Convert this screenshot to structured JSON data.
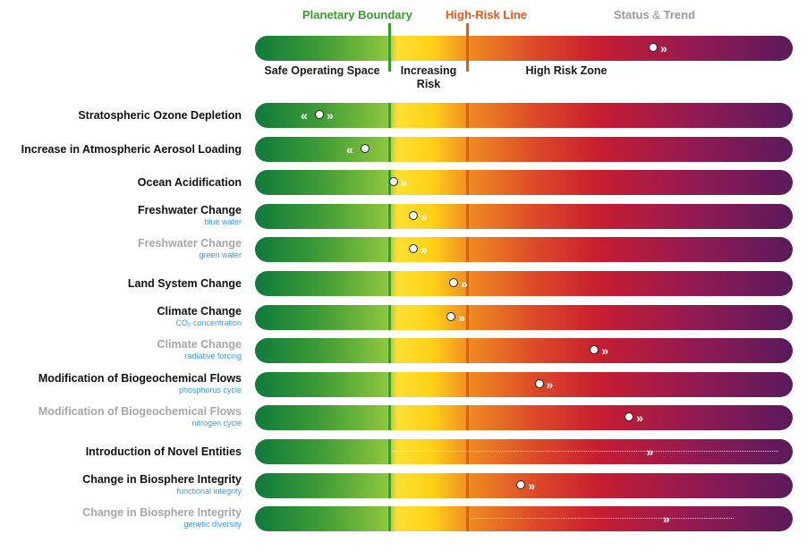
{
  "header": {
    "planetary_boundary": "Planetary Boundary",
    "high_risk_line": "High-Risk Line",
    "status_a": "Status",
    "status_amp": " & ",
    "status_b": "Trend"
  },
  "legend": {
    "safe": "Safe Operating Space",
    "increasing_1": "Increasing",
    "increasing_2": "Risk",
    "high": "High Risk Zone"
  },
  "colors": {
    "boundary": "#3a9a2c",
    "high_risk": "#e2591e",
    "status_gray": "#9a9a9a",
    "subtitle_blue": "#3a9ad9"
  },
  "chart_data": {
    "type": "bar",
    "scale": {
      "boundary": 1.0,
      "high_risk_line": 1.58,
      "max": 4.0
    },
    "legend_marker": {
      "value": 3.0,
      "trend": "increasing"
    },
    "rows": [
      {
        "label": "Stratospheric Ozone Depletion",
        "sub": "",
        "dim": false,
        "value": 0.48,
        "trend": "decreasing"
      },
      {
        "label": "Increase in Atmospheric Aerosol Loading",
        "sub": "",
        "dim": false,
        "value": 0.82,
        "trend": "decreasing"
      },
      {
        "label": "Ocean Acidification",
        "sub": "",
        "dim": false,
        "value": 1.03,
        "trend": "increasing"
      },
      {
        "label": "Freshwater Change",
        "sub": "blue water",
        "dim": false,
        "value": 1.18,
        "trend": "increasing"
      },
      {
        "label": "Freshwater Change",
        "sub": "green water",
        "dim": true,
        "value": 1.18,
        "trend": "increasing"
      },
      {
        "label": "Land System Change",
        "sub": "",
        "dim": false,
        "value": 1.48,
        "trend": "increasing"
      },
      {
        "label": "Climate Change",
        "sub": "CO₂ concentration",
        "dim": false,
        "value": 1.46,
        "trend": "increasing"
      },
      {
        "label": "Climate Change",
        "sub": "radiative forcing",
        "dim": true,
        "value": 2.57,
        "trend": "increasing"
      },
      {
        "label": "Modification of Biogeochemical Flows",
        "sub": "phosphorus cycle",
        "dim": false,
        "value": 2.14,
        "trend": "increasing"
      },
      {
        "label": "Modification of Biogeochemical Flows",
        "sub": "nitrogen cycle",
        "dim": true,
        "value": 2.84,
        "trend": "increasing"
      },
      {
        "label": "Introduction of Novel Entities",
        "sub": "",
        "dim": false,
        "value": null,
        "range": [
          1.0,
          4.0
        ],
        "trend": "increasing"
      },
      {
        "label": "Change in Biosphere Integrity",
        "sub": "functional integrity",
        "dim": false,
        "value": 2.0,
        "trend": "increasing"
      },
      {
        "label": "Change in Biosphere Integrity",
        "sub": "genetic diversity",
        "dim": true,
        "value": null,
        "range": [
          1.58,
          3.65
        ],
        "trend": "increasing"
      }
    ]
  }
}
